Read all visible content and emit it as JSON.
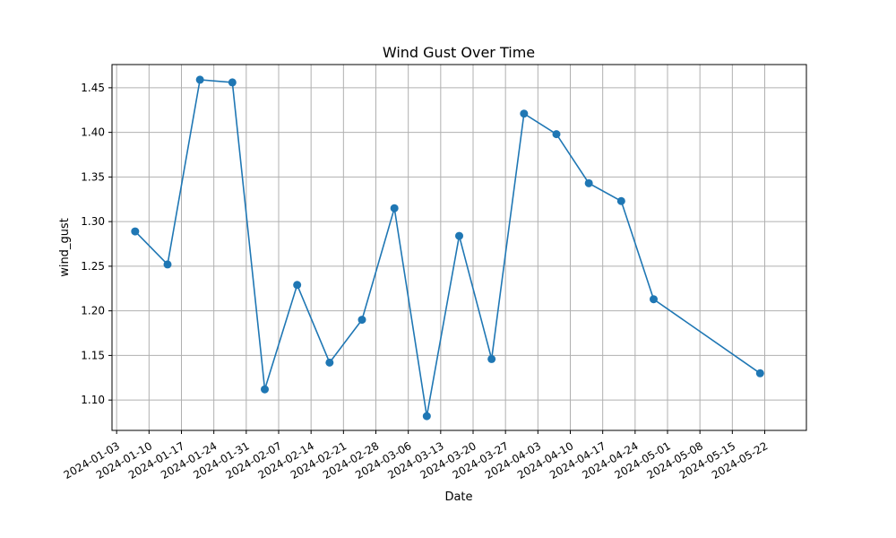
{
  "chart_data": {
    "type": "line",
    "title": "Wind Gust Over Time",
    "xlabel": "Date",
    "ylabel": "wind_gust",
    "grid": true,
    "color": "#1f77b4",
    "xlim": [
      "2024-01-02",
      "2024-05-31"
    ],
    "ylim": [
      1.066,
      1.476
    ],
    "x_ticks": [
      "2024-01-03",
      "2024-01-10",
      "2024-01-17",
      "2024-01-24",
      "2024-01-31",
      "2024-02-07",
      "2024-02-14",
      "2024-02-21",
      "2024-02-28",
      "2024-03-06",
      "2024-03-13",
      "2024-03-20",
      "2024-03-27",
      "2024-04-03",
      "2024-04-10",
      "2024-04-17",
      "2024-04-24",
      "2024-05-01",
      "2024-05-08",
      "2024-05-15",
      "2024-05-22"
    ],
    "y_ticks": [
      "1.10",
      "1.15",
      "1.20",
      "1.25",
      "1.30",
      "1.35",
      "1.40",
      "1.45"
    ],
    "series": [
      {
        "x": [
          "2024-01-07",
          "2024-01-14",
          "2024-01-21",
          "2024-01-28",
          "2024-02-04",
          "2024-02-11",
          "2024-02-18",
          "2024-02-25",
          "2024-03-03",
          "2024-03-10",
          "2024-03-17",
          "2024-03-24",
          "2024-03-31",
          "2024-04-07",
          "2024-04-14",
          "2024-04-21",
          "2024-04-28",
          "2024-05-21"
        ],
        "values": [
          1.289,
          1.252,
          1.459,
          1.456,
          1.112,
          1.229,
          1.142,
          1.19,
          1.315,
          1.082,
          1.284,
          1.146,
          1.421,
          1.398,
          1.343,
          1.323,
          1.213,
          1.13
        ]
      }
    ]
  }
}
